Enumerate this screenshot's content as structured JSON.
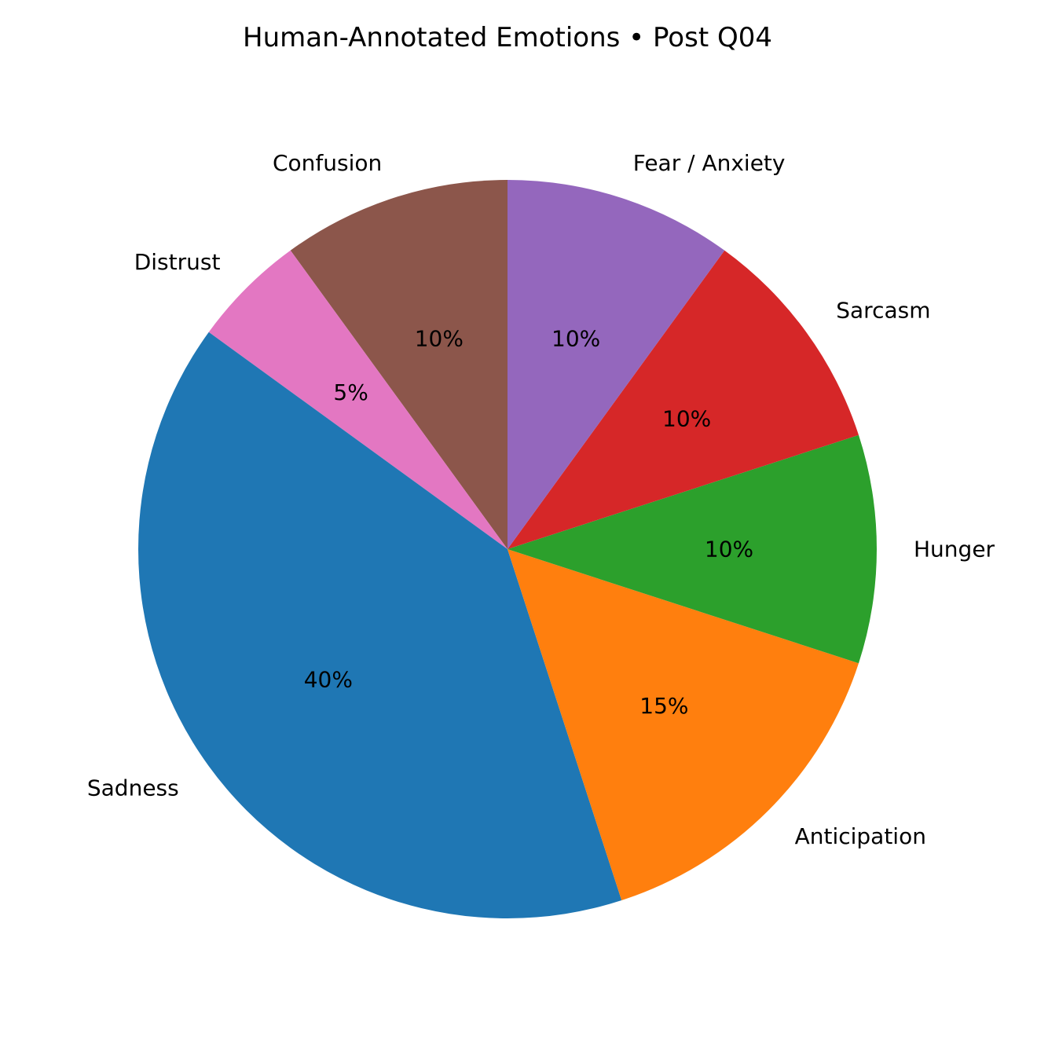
{
  "chart_data": {
    "type": "pie",
    "title": "Human-Annotated Emotions • Post Q04",
    "start_angle_deg": 90,
    "direction": "counterclockwise",
    "slices": [
      {
        "label": "Confusion",
        "value": 10,
        "pct_label": "10%",
        "color": "#8c564b"
      },
      {
        "label": "Distrust",
        "value": 5,
        "pct_label": "5%",
        "color": "#e377c2"
      },
      {
        "label": "Sadness",
        "value": 40,
        "pct_label": "40%",
        "color": "#1f77b4"
      },
      {
        "label": "Anticipation",
        "value": 15,
        "pct_label": "15%",
        "color": "#ff7f0e"
      },
      {
        "label": "Hunger",
        "value": 10,
        "pct_label": "10%",
        "color": "#2ca02c"
      },
      {
        "label": "Sarcasm",
        "value": 10,
        "pct_label": "10%",
        "color": "#d62728"
      },
      {
        "label": "Fear / Anxiety",
        "value": 10,
        "pct_label": "10%",
        "color": "#9467bd"
      }
    ]
  }
}
